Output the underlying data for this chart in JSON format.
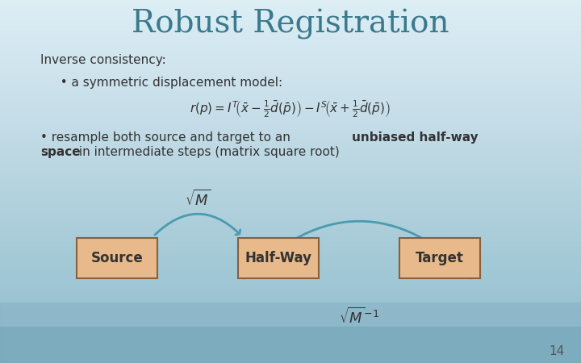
{
  "title": "Robust Registration",
  "title_color": "#3a7a8c",
  "title_fontsize": 28,
  "bg_color_top": "#e8f4f8",
  "bg_color_bottom": "#b0cfd8",
  "text_line1": "Inverse consistency:",
  "text_line2": "  • a symmetric displacement model:",
  "text_line3": "• resample both source and target to an ",
  "text_line3b": "unbiased half-way",
  "text_line4": "space",
  "text_line4b": " in intermediate steps (matrix square root)",
  "box_color": "#e8b98a",
  "box_edge_color": "#8b5e3c",
  "arrow_color": "#4a9ab0",
  "source_label": "Source",
  "halfway_label": "Half-Way",
  "target_label": "Target",
  "slide_number": "14",
  "formula_color": "#333333",
  "text_color": "#333333"
}
